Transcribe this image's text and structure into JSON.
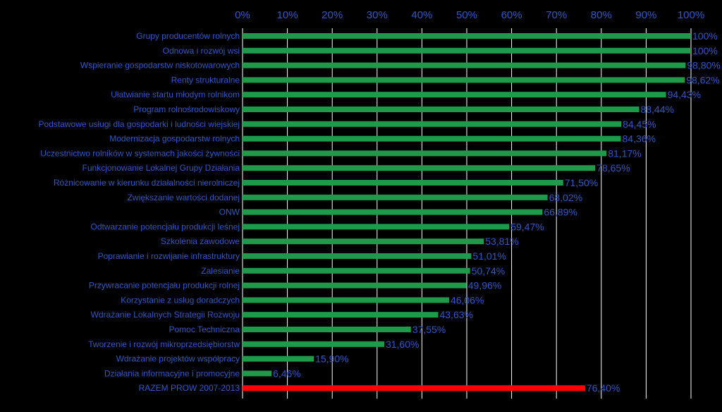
{
  "chart_data": {
    "type": "bar",
    "orientation": "horizontal",
    "categories": [
      "Grupy producentów rolnych",
      "Odnowa i rozwój wsi",
      "Wspieranie gospodarstw niskotowarowych",
      "Renty strukturalne",
      "Ułatwianie startu młodym rolnikom",
      "Program rolnośrodowiskowy",
      "Podstawowe usługi dla gospodarki i ludności wiejskiej",
      "Modernizacja gospodarstw rolnych",
      "Uczestnictwo rolników w systemach jakości żywności",
      "Funkcjonowanie Lokalnej Grupy Działania",
      "Różnicowanie w kierunku działalności nierolniczej",
      "Zwiększanie wartości dodanej",
      "ONW",
      "Odtwarzanie potencjału produkcji leśnej",
      "Szkolenia zawodowe",
      "Poprawianie i rozwijanie infrastruktury",
      "Zalesianie",
      "Przywracanie potencjału produkcji rolnej",
      "Korzystanie z usług doradczych",
      "Wdrażanie Lokalnych Strategii Rozwoju",
      "Pomoc Techniczna",
      "Tworzenie i rozwój mikroprzedsiębiorstw",
      "Wdrażanie projektów współpracy",
      "Działania informacyjne i promocyjne",
      "RAZEM PROW 2007-2013"
    ],
    "values": [
      100,
      100,
      98.8,
      98.62,
      94.43,
      88.44,
      84.45,
      84.36,
      81.17,
      78.65,
      71.5,
      68.02,
      66.89,
      59.47,
      53.81,
      51.01,
      50.74,
      49.96,
      46.06,
      43.63,
      37.55,
      31.6,
      15.9,
      6.46,
      76.4
    ],
    "value_labels": [
      "100%",
      "100%",
      "98,80%",
      "98,62%",
      "94,43%",
      "88,44%",
      "84,45%",
      "84,36%",
      "81,17%",
      "78,65%",
      "71,50%",
      "68,02%",
      "66,89%",
      "59,47%",
      "53,81%",
      "51,01%",
      "50,74%",
      "49,96%",
      "46,06%",
      "43,63%",
      "37,55%",
      "31,60%",
      "15,90%",
      "6,46%",
      "76,40%"
    ],
    "bar_colors": [
      "#1f9a4a",
      "#1f9a4a",
      "#1f9a4a",
      "#1f9a4a",
      "#1f9a4a",
      "#1f9a4a",
      "#1f9a4a",
      "#1f9a4a",
      "#1f9a4a",
      "#1f9a4a",
      "#1f9a4a",
      "#1f9a4a",
      "#1f9a4a",
      "#1f9a4a",
      "#1f9a4a",
      "#1f9a4a",
      "#1f9a4a",
      "#1f9a4a",
      "#1f9a4a",
      "#1f9a4a",
      "#1f9a4a",
      "#1f9a4a",
      "#1f9a4a",
      "#1f9a4a",
      "#ff0000"
    ],
    "x_ticks": [
      "0%",
      "10%",
      "20%",
      "30%",
      "40%",
      "50%",
      "60%",
      "70%",
      "80%",
      "90%",
      "100%"
    ],
    "xlim": [
      0,
      100
    ],
    "axis_position": "top",
    "grid": true,
    "title": "",
    "xlabel": "",
    "ylabel": "",
    "background_color": "#000000",
    "text_color": "#2f57c9",
    "grid_color": "#ffffff"
  }
}
